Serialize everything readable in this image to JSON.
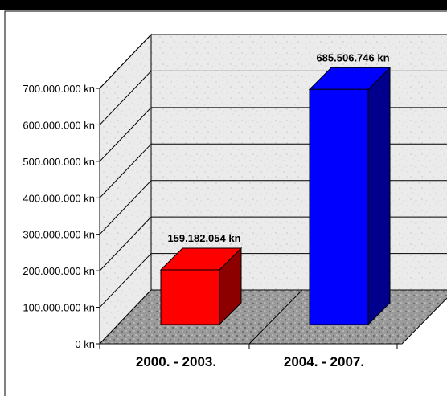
{
  "chart_data": {
    "type": "bar",
    "title": "",
    "xlabel": "",
    "ylabel": "",
    "categories": [
      "2000. - 2003.",
      "2004. - 2007."
    ],
    "values": [
      159182054,
      685506746
    ],
    "value_labels": [
      "159.182.054 kn",
      "685.506.746 kn"
    ],
    "yticks": [
      "0 kn",
      "100.000.000 kn",
      "200.000.000 kn",
      "300.000.000 kn",
      "400.000.000 kn",
      "500.000.000 kn",
      "600.000.000 kn",
      "700.000.000 kn"
    ],
    "ylim": [
      0,
      700000000
    ],
    "grid": true,
    "three_d": true,
    "legend": "none",
    "colors": {
      "bar_1": "#ff0000",
      "bar_2": "#0000ff",
      "wall": "#ececec",
      "floor": "#9c9c9c",
      "grid": "#000000"
    }
  }
}
